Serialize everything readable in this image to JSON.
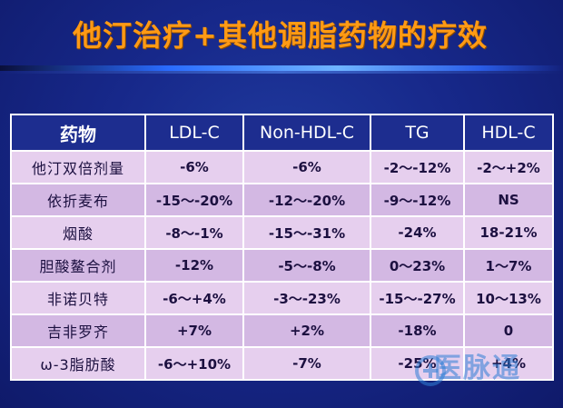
{
  "slide": {
    "title": "他汀治疗+其他调脂药物的疗效"
  },
  "table": {
    "headers": [
      "药物",
      "LDL-C",
      "Non-HDL-C",
      "TG",
      "HDL-C"
    ],
    "rows": [
      [
        "他汀双倍剂量",
        "-6%",
        "-6%",
        "-2～-12%",
        "-2～+2%"
      ],
      [
        "依折麦布",
        "-15～-20%",
        "-12～-20%",
        "-9～-12%",
        "NS"
      ],
      [
        "烟酸",
        "-8～-1%",
        "-15～-31%",
        "-24%",
        "18-21%"
      ],
      [
        "胆酸鳌合剂",
        "-12%",
        "-5～-8%",
        "0～23%",
        "1～7%"
      ],
      [
        "非诺贝特",
        "-6～+4%",
        "-3～-23%",
        "-15～-27%",
        "10～13%"
      ],
      [
        "吉非罗齐",
        "+7%",
        "+2%",
        "-18%",
        "0"
      ],
      [
        "ω-3脂肪酸",
        "-6～+10%",
        "-7%",
        "-25%",
        "+4%"
      ]
    ]
  },
  "watermark": {
    "text": "医脉通",
    "icon": "medlive-logo-icon",
    "color": "#2f7fd6"
  },
  "colors": {
    "title": "#ff9a14",
    "header_bg": "#1d2d8f",
    "row_bg": "#e6cfee",
    "row_alt_bg": "#d3b8e3"
  }
}
